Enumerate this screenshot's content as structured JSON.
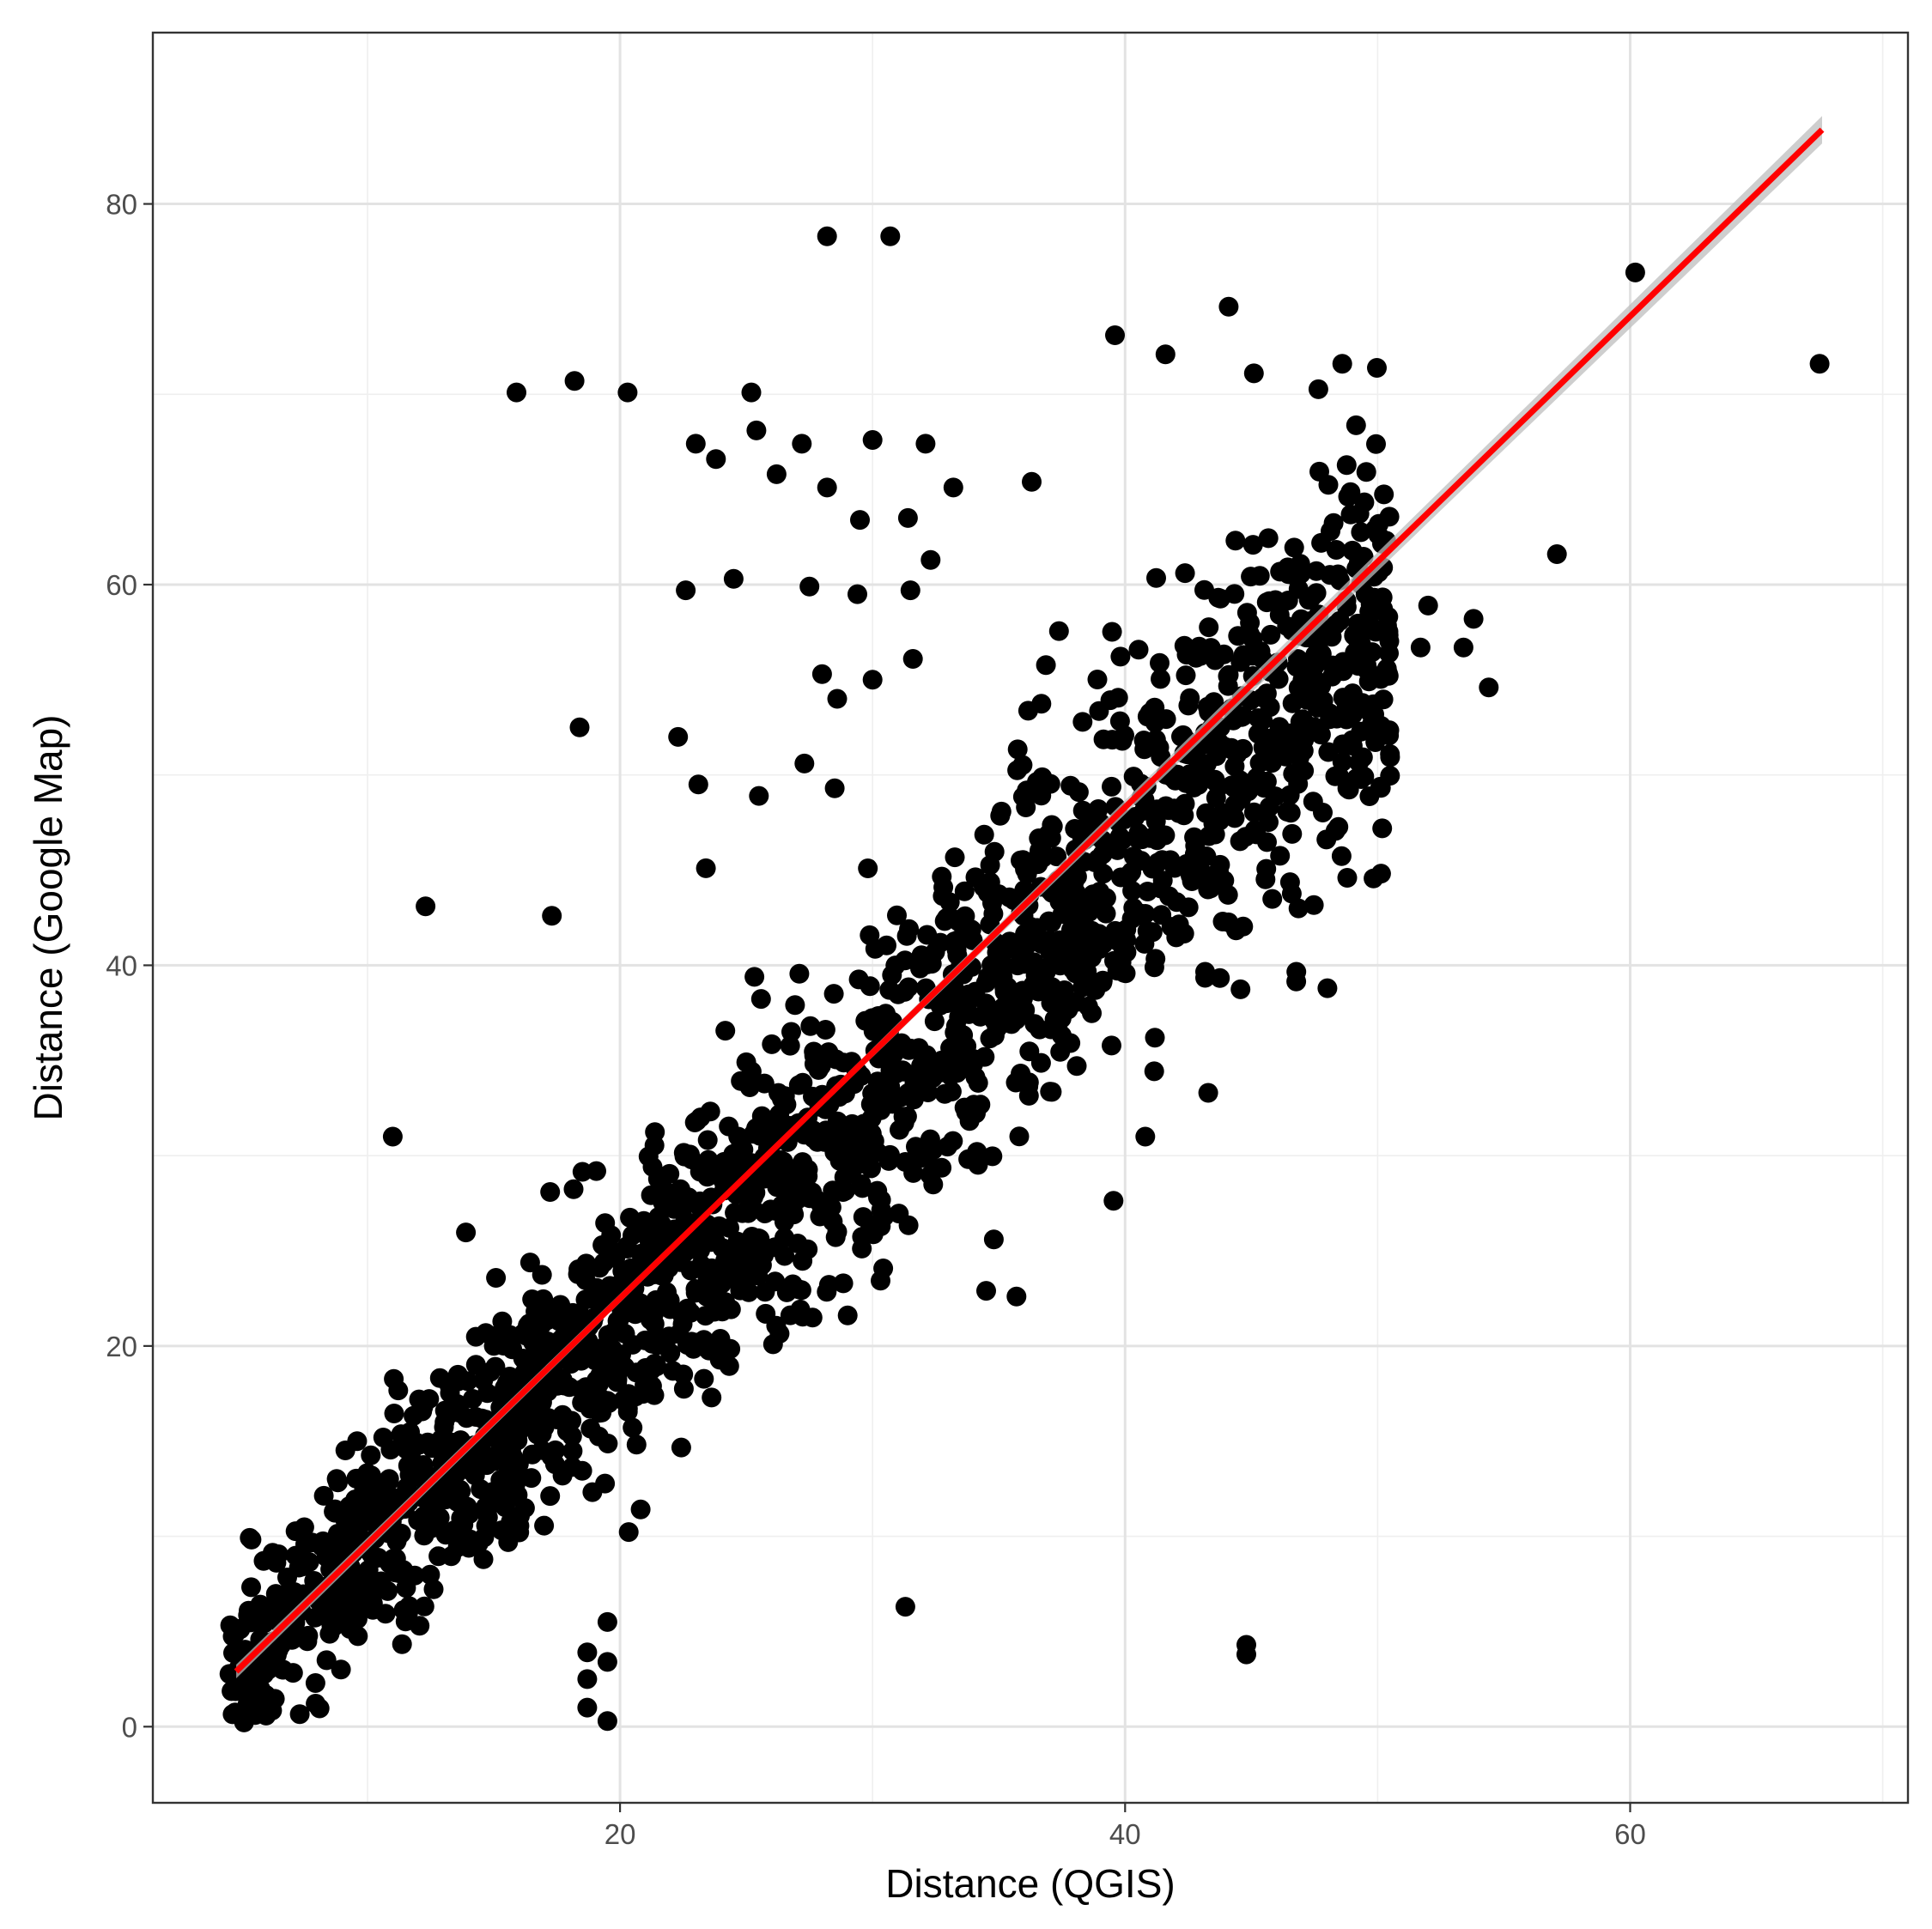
{
  "chart_data": {
    "type": "scatter",
    "title": "",
    "xlabel": "Distance (QGIS)",
    "ylabel": "Distance (Google Map)",
    "xlim": [
      1.5,
      71
    ],
    "ylim": [
      -4,
      89
    ],
    "x_ticks": [
      20,
      40,
      60
    ],
    "y_ticks": [
      0,
      20,
      40,
      60,
      80
    ],
    "x_tick_labels": [
      "20",
      "40",
      "60"
    ],
    "y_tick_labels": [
      "0",
      "20",
      "40",
      "60",
      "80"
    ],
    "grid": true,
    "legend": "none",
    "trend_line": {
      "method": "linear fit with confidence band",
      "x": [
        4.8,
        67.6
      ],
      "y": [
        2.9,
        83.9
      ],
      "color": "#ff0000",
      "band_color": "#bebebe"
    },
    "point_color": "#000000",
    "bulk_trend": {
      "x_min": 4.5,
      "x_max": 50.5,
      "intercept": -2.5,
      "slope": 1.2,
      "noise_sd": 3.6,
      "count": 1900
    },
    "highlighted_points": [
      [
        28.2,
        78.3
      ],
      [
        30.7,
        78.3
      ],
      [
        60.2,
        76.4
      ],
      [
        67.5,
        71.6
      ],
      [
        48.6,
        71.6
      ],
      [
        44.1,
        74.6
      ],
      [
        39.6,
        73.1
      ],
      [
        41.6,
        72.1
      ],
      [
        45.1,
        71.1
      ],
      [
        15.9,
        70.1
      ],
      [
        18.2,
        70.7
      ],
      [
        20.3,
        70.1
      ],
      [
        25.2,
        70.1
      ],
      [
        57.1,
        61.6
      ],
      [
        54.4,
        54.6
      ],
      [
        12.3,
        43.1
      ],
      [
        17.3,
        42.6
      ],
      [
        11.0,
        31.0
      ],
      [
        40.8,
        31.0
      ],
      [
        34.8,
        25.6
      ],
      [
        35.7,
        22.6
      ],
      [
        34.5,
        22.9
      ],
      [
        31.3,
        6.3
      ],
      [
        44.8,
        4.3
      ],
      [
        44.8,
        3.8
      ],
      [
        19.5,
        5.5
      ],
      [
        19.5,
        3.4
      ],
      [
        18.7,
        3.9
      ],
      [
        18.7,
        2.5
      ],
      [
        18.7,
        1.0
      ],
      [
        19.5,
        0.3
      ],
      [
        18.4,
        52.5
      ],
      [
        22.3,
        52.0
      ],
      [
        23.0,
        67.4
      ],
      [
        23.8,
        66.6
      ],
      [
        25.4,
        68.1
      ],
      [
        27.2,
        67.4
      ],
      [
        30.0,
        67.6
      ],
      [
        32.1,
        67.4
      ],
      [
        33.2,
        65.1
      ],
      [
        24.5,
        60.3
      ],
      [
        22.6,
        59.7
      ],
      [
        27.5,
        59.9
      ],
      [
        29.4,
        59.5
      ],
      [
        31.5,
        59.7
      ],
      [
        30.0,
        55.0
      ],
      [
        31.6,
        56.1
      ],
      [
        28.0,
        55.3
      ],
      [
        28.6,
        54.0
      ],
      [
        23.1,
        49.5
      ],
      [
        25.5,
        48.9
      ],
      [
        27.3,
        50.6
      ],
      [
        28.5,
        49.3
      ],
      [
        23.4,
        45.1
      ],
      [
        26.2,
        65.8
      ],
      [
        28.2,
        65.1
      ],
      [
        29.5,
        63.4
      ],
      [
        31.4,
        63.5
      ],
      [
        32.3,
        61.3
      ],
      [
        36.3,
        65.4
      ],
      [
        48.8,
        49.3
      ],
      [
        53.4,
        56.7
      ],
      [
        51.7,
        56.7
      ],
      [
        52.0,
        58.9
      ],
      [
        53.8,
        58.2
      ]
    ]
  }
}
